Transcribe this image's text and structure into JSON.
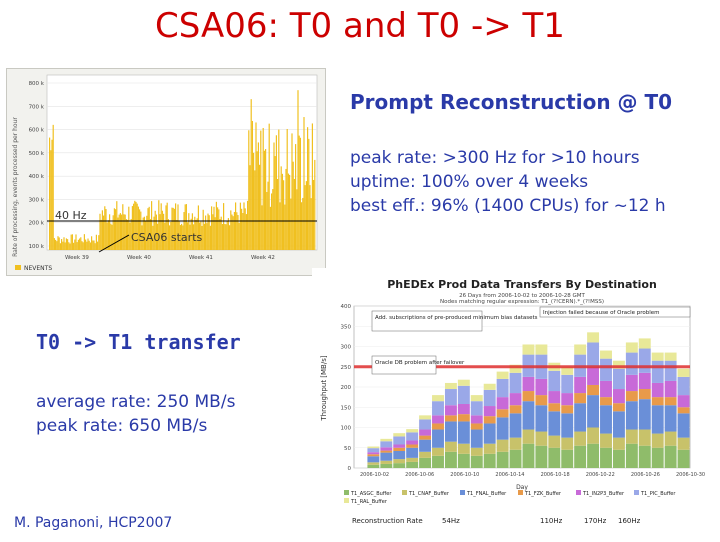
{
  "slide": {
    "title": "CSA06: T0 and T0 -> T1",
    "footer": "M. Paganoni, HCP2007"
  },
  "prompt_reco": {
    "heading": "Prompt Reconstruction @ T0",
    "lines": [
      "peak rate: >300 Hz for >10 hours",
      "uptime: 100% over 4 weeks",
      "best eff.: 96% (1400 CPUs) for ~12 h"
    ]
  },
  "transfer": {
    "heading": "T0 -> T1 transfer",
    "lines": [
      "average rate: 250 MB/s",
      "peak rate: 650 MB/s"
    ]
  },
  "reco_plot": {
    "annotation_rate": "40 Hz",
    "annotation_start": "CSA06 starts",
    "y_ticks": [
      "800 k",
      "700 k",
      "600 k",
      "500 k",
      "400 k",
      "300 k",
      "200 k",
      "100 k"
    ],
    "x_ticks": [
      "Week 39",
      "Week 40",
      "Week 41",
      "Week 42"
    ],
    "ylabel": "Rate of processing, events processed per hour",
    "legend": "NEVENTS",
    "bar_color": "#f0c020"
  },
  "chart_data": {
    "type": "bar",
    "title": "PhEDEx Prod Data Transfers By Destination",
    "subtitle_lines": [
      "26 Days from 2006-10-02 to 2006-10-28 GMT",
      "Nodes matching regular expression: T1_(?!CERN).*_(?!MSS)"
    ],
    "ylabel": "Throughput [MB/s]",
    "xlabel": "Day",
    "ylim": [
      0,
      400
    ],
    "y_ticks": [
      0,
      50,
      100,
      150,
      200,
      250,
      300,
      350,
      400
    ],
    "x_tick_labels": [
      "2006-10-02",
      "2006-10-06",
      "2006-10-10",
      "2006-10-14",
      "2006-10-18",
      "2006-10-22",
      "2006-10-26",
      "2006-10-30"
    ],
    "annotations": [
      "Add. subscriptions of pre-produced minimum bias datasets",
      "Injection failed because of Oracle problem",
      "Oracle DB problem after failover"
    ],
    "average_line": 250,
    "series": [
      {
        "name": "T1_ASGC_Buffer",
        "color": "#8fbc6a",
        "values": [
          0,
          8,
          10,
          12,
          15,
          25,
          30,
          40,
          35,
          30,
          35,
          40,
          45,
          60,
          55,
          50,
          45,
          55,
          60,
          50,
          45,
          60,
          55,
          50,
          55,
          45
        ]
      },
      {
        "name": "T1_CNAF_Buffer",
        "color": "#c8c26a",
        "values": [
          0,
          6,
          8,
          10,
          10,
          15,
          20,
          25,
          25,
          20,
          25,
          30,
          30,
          35,
          35,
          30,
          30,
          35,
          40,
          35,
          30,
          35,
          40,
          35,
          35,
          30
        ]
      },
      {
        "name": "T1_FNAL_Buffer",
        "color": "#6a8fd8",
        "values": [
          0,
          15,
          20,
          20,
          25,
          30,
          45,
          50,
          55,
          45,
          50,
          55,
          60,
          70,
          65,
          60,
          60,
          70,
          80,
          70,
          65,
          70,
          75,
          70,
          65,
          60
        ]
      },
      {
        "name": "T1_FZK_Buffer",
        "color": "#e89a4a",
        "values": [
          0,
          5,
          5,
          8,
          8,
          10,
          15,
          15,
          18,
          15,
          18,
          20,
          20,
          25,
          25,
          20,
          20,
          25,
          25,
          20,
          20,
          25,
          25,
          20,
          20,
          15
        ]
      },
      {
        "name": "T1_IN2P3_Buffer",
        "color": "#c86ad8",
        "values": [
          0,
          5,
          8,
          8,
          10,
          15,
          20,
          25,
          25,
          20,
          25,
          30,
          30,
          35,
          40,
          30,
          30,
          40,
          45,
          40,
          35,
          40,
          40,
          35,
          40,
          30
        ]
      },
      {
        "name": "T1_PIC_Buffer",
        "color": "#9aa8e8",
        "values": [
          0,
          10,
          15,
          20,
          20,
          25,
          35,
          40,
          45,
          35,
          40,
          45,
          50,
          55,
          60,
          50,
          45,
          55,
          60,
          55,
          50,
          55,
          60,
          55,
          50,
          45
        ]
      },
      {
        "name": "T1_RAL_Buffer",
        "color": "#e8e898",
        "values": [
          0,
          4,
          6,
          8,
          8,
          10,
          15,
          15,
          15,
          15,
          15,
          18,
          20,
          25,
          25,
          20,
          20,
          25,
          25,
          20,
          20,
          25,
          25,
          20,
          20,
          20
        ]
      }
    ],
    "reco_rate_row": {
      "label": "Reconstruction Rate",
      "values": [
        "54Hz",
        "110Hz",
        "170Hz",
        "160Hz"
      ]
    }
  }
}
